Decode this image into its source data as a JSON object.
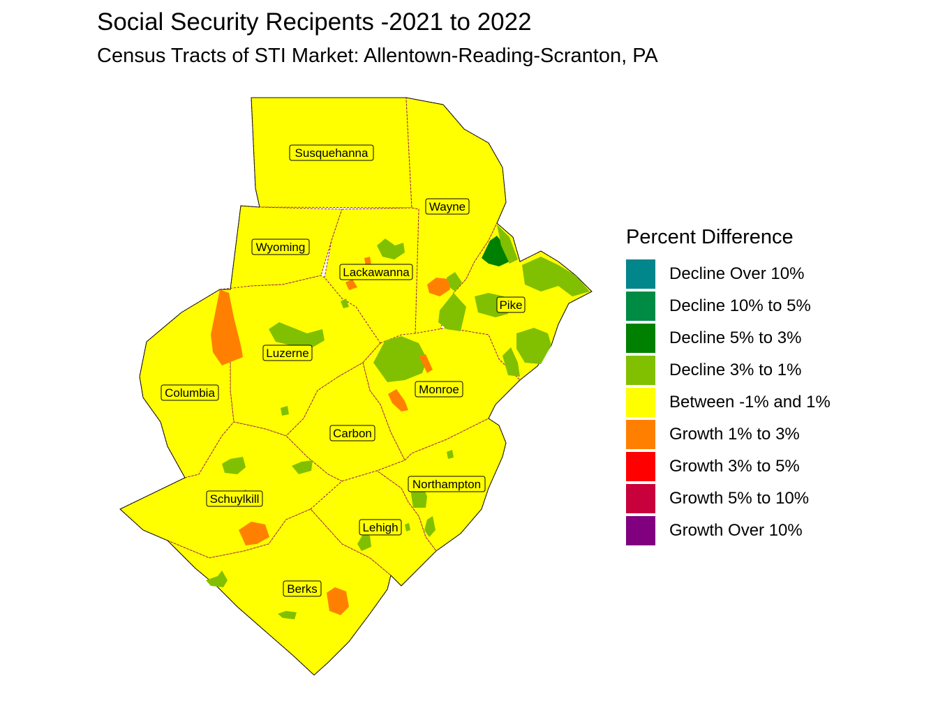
{
  "title": "Social Security Recipents -2021 to 2022",
  "subtitle": "Census Tracts of STI Market: Allentown-Reading-Scranton, PA",
  "legend": {
    "title": "Percent Difference",
    "items": [
      {
        "label": "Decline Over 10%",
        "color": "#00868b"
      },
      {
        "label": "Decline 10% to 5%",
        "color": "#008b45"
      },
      {
        "label": "Decline 5% to 3%",
        "color": "#008000"
      },
      {
        "label": "Decline 3% to 1%",
        "color": "#80c000"
      },
      {
        "label": "Between -1% and 1%",
        "color": "#ffff00"
      },
      {
        "label": "Growth 1% to 3%",
        "color": "#ff8000"
      },
      {
        "label": "Growth 3% to 5%",
        "color": "#ff0000"
      },
      {
        "label": "Growth 5% to 10%",
        "color": "#c8003c"
      },
      {
        "label": "Growth Over 10%",
        "color": "#800080"
      }
    ]
  },
  "counties": [
    {
      "name": "Susquehanna"
    },
    {
      "name": "Wayne"
    },
    {
      "name": "Wyoming"
    },
    {
      "name": "Lackawanna"
    },
    {
      "name": "Pike"
    },
    {
      "name": "Luzerne"
    },
    {
      "name": "Columbia"
    },
    {
      "name": "Monroe"
    },
    {
      "name": "Carbon"
    },
    {
      "name": "Northampton"
    },
    {
      "name": "Schuylkill"
    },
    {
      "name": "Lehigh"
    },
    {
      "name": "Berks"
    }
  ]
}
